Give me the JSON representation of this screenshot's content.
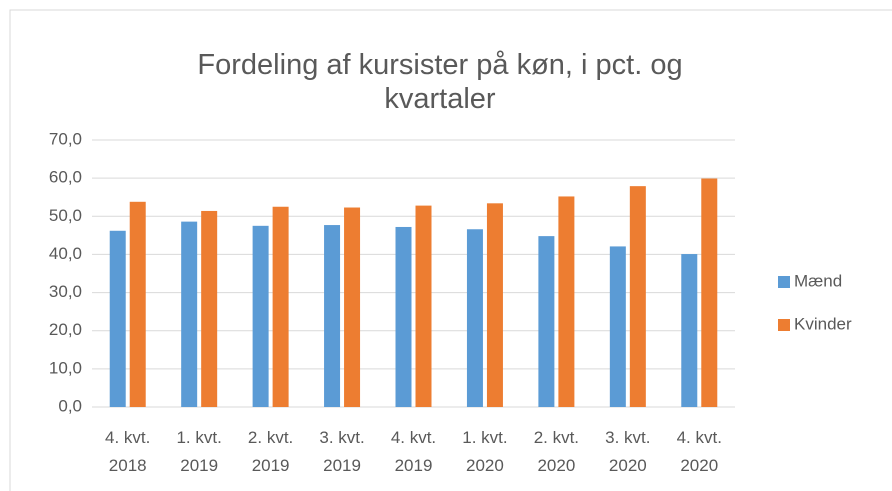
{
  "chart_data": {
    "type": "bar",
    "title": "Fordeling af kursister på køn, i pct. og kvartaler",
    "categories": [
      "4. kvt. 2018",
      "1. kvt. 2019",
      "2. kvt. 2019",
      "3. kvt. 2019",
      "4. kvt. 2019",
      "1. kvt. 2020",
      "2. kvt. 2020",
      "3. kvt. 2020",
      "4. kvt. 2020"
    ],
    "series": [
      {
        "name": "Mænd",
        "color": "#5b9bd5",
        "values": [
          46.2,
          48.6,
          47.5,
          47.7,
          47.2,
          46.6,
          44.8,
          42.1,
          40.1
        ]
      },
      {
        "name": "Kvinder",
        "color": "#ed7d31",
        "values": [
          53.8,
          51.4,
          52.5,
          52.3,
          52.8,
          53.4,
          55.2,
          57.9,
          59.9
        ]
      }
    ],
    "ylim": [
      0,
      70
    ],
    "yticks": [
      {
        "value": 0,
        "label": "0,0"
      },
      {
        "value": 10,
        "label": "10,0"
      },
      {
        "value": 20,
        "label": "20,0"
      },
      {
        "value": 30,
        "label": "30,0"
      },
      {
        "value": 40,
        "label": "40,0"
      },
      {
        "value": 50,
        "label": "50,0"
      },
      {
        "value": 60,
        "label": "60,0"
      },
      {
        "value": 70,
        "label": "70,0"
      }
    ],
    "grid": true,
    "legend": "right"
  }
}
